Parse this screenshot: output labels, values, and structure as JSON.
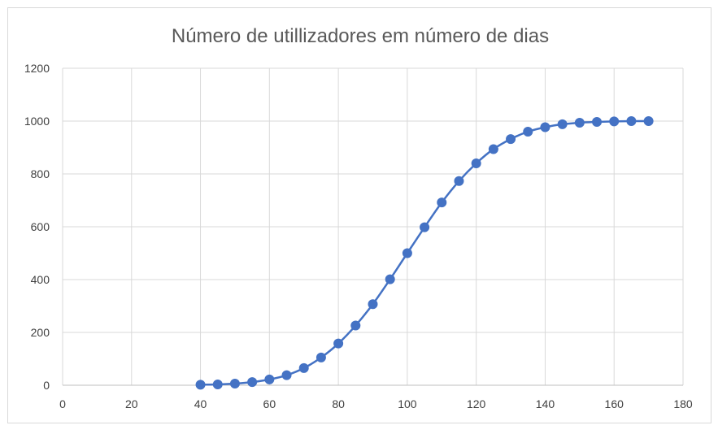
{
  "chart_data": {
    "type": "scatter",
    "title": "Número de utillizadores em número de dias",
    "xlabel": "",
    "ylabel": "",
    "xlim": [
      0,
      180
    ],
    "ylim": [
      0,
      1200
    ],
    "xticks": [
      "0",
      "20",
      "40",
      "60",
      "80",
      "100",
      "120",
      "140",
      "160",
      "180"
    ],
    "yticks": [
      "0",
      "200",
      "400",
      "600",
      "800",
      "1000",
      "1200"
    ],
    "grid": true,
    "line_color": "#4472c4",
    "series": [
      {
        "x": [
          40,
          45,
          50,
          55,
          60,
          65,
          70,
          75,
          80,
          85,
          90,
          95,
          100,
          105,
          110,
          115,
          120,
          125,
          130,
          135,
          140,
          145,
          150,
          155,
          160,
          165,
          170
        ],
        "y": [
          2,
          3,
          6,
          12,
          22,
          38,
          65,
          105,
          158,
          226,
          307,
          401,
          500,
          598,
          692,
          773,
          840,
          894,
          932,
          960,
          977,
          988,
          994,
          997,
          999,
          1000,
          1000
        ]
      }
    ]
  }
}
